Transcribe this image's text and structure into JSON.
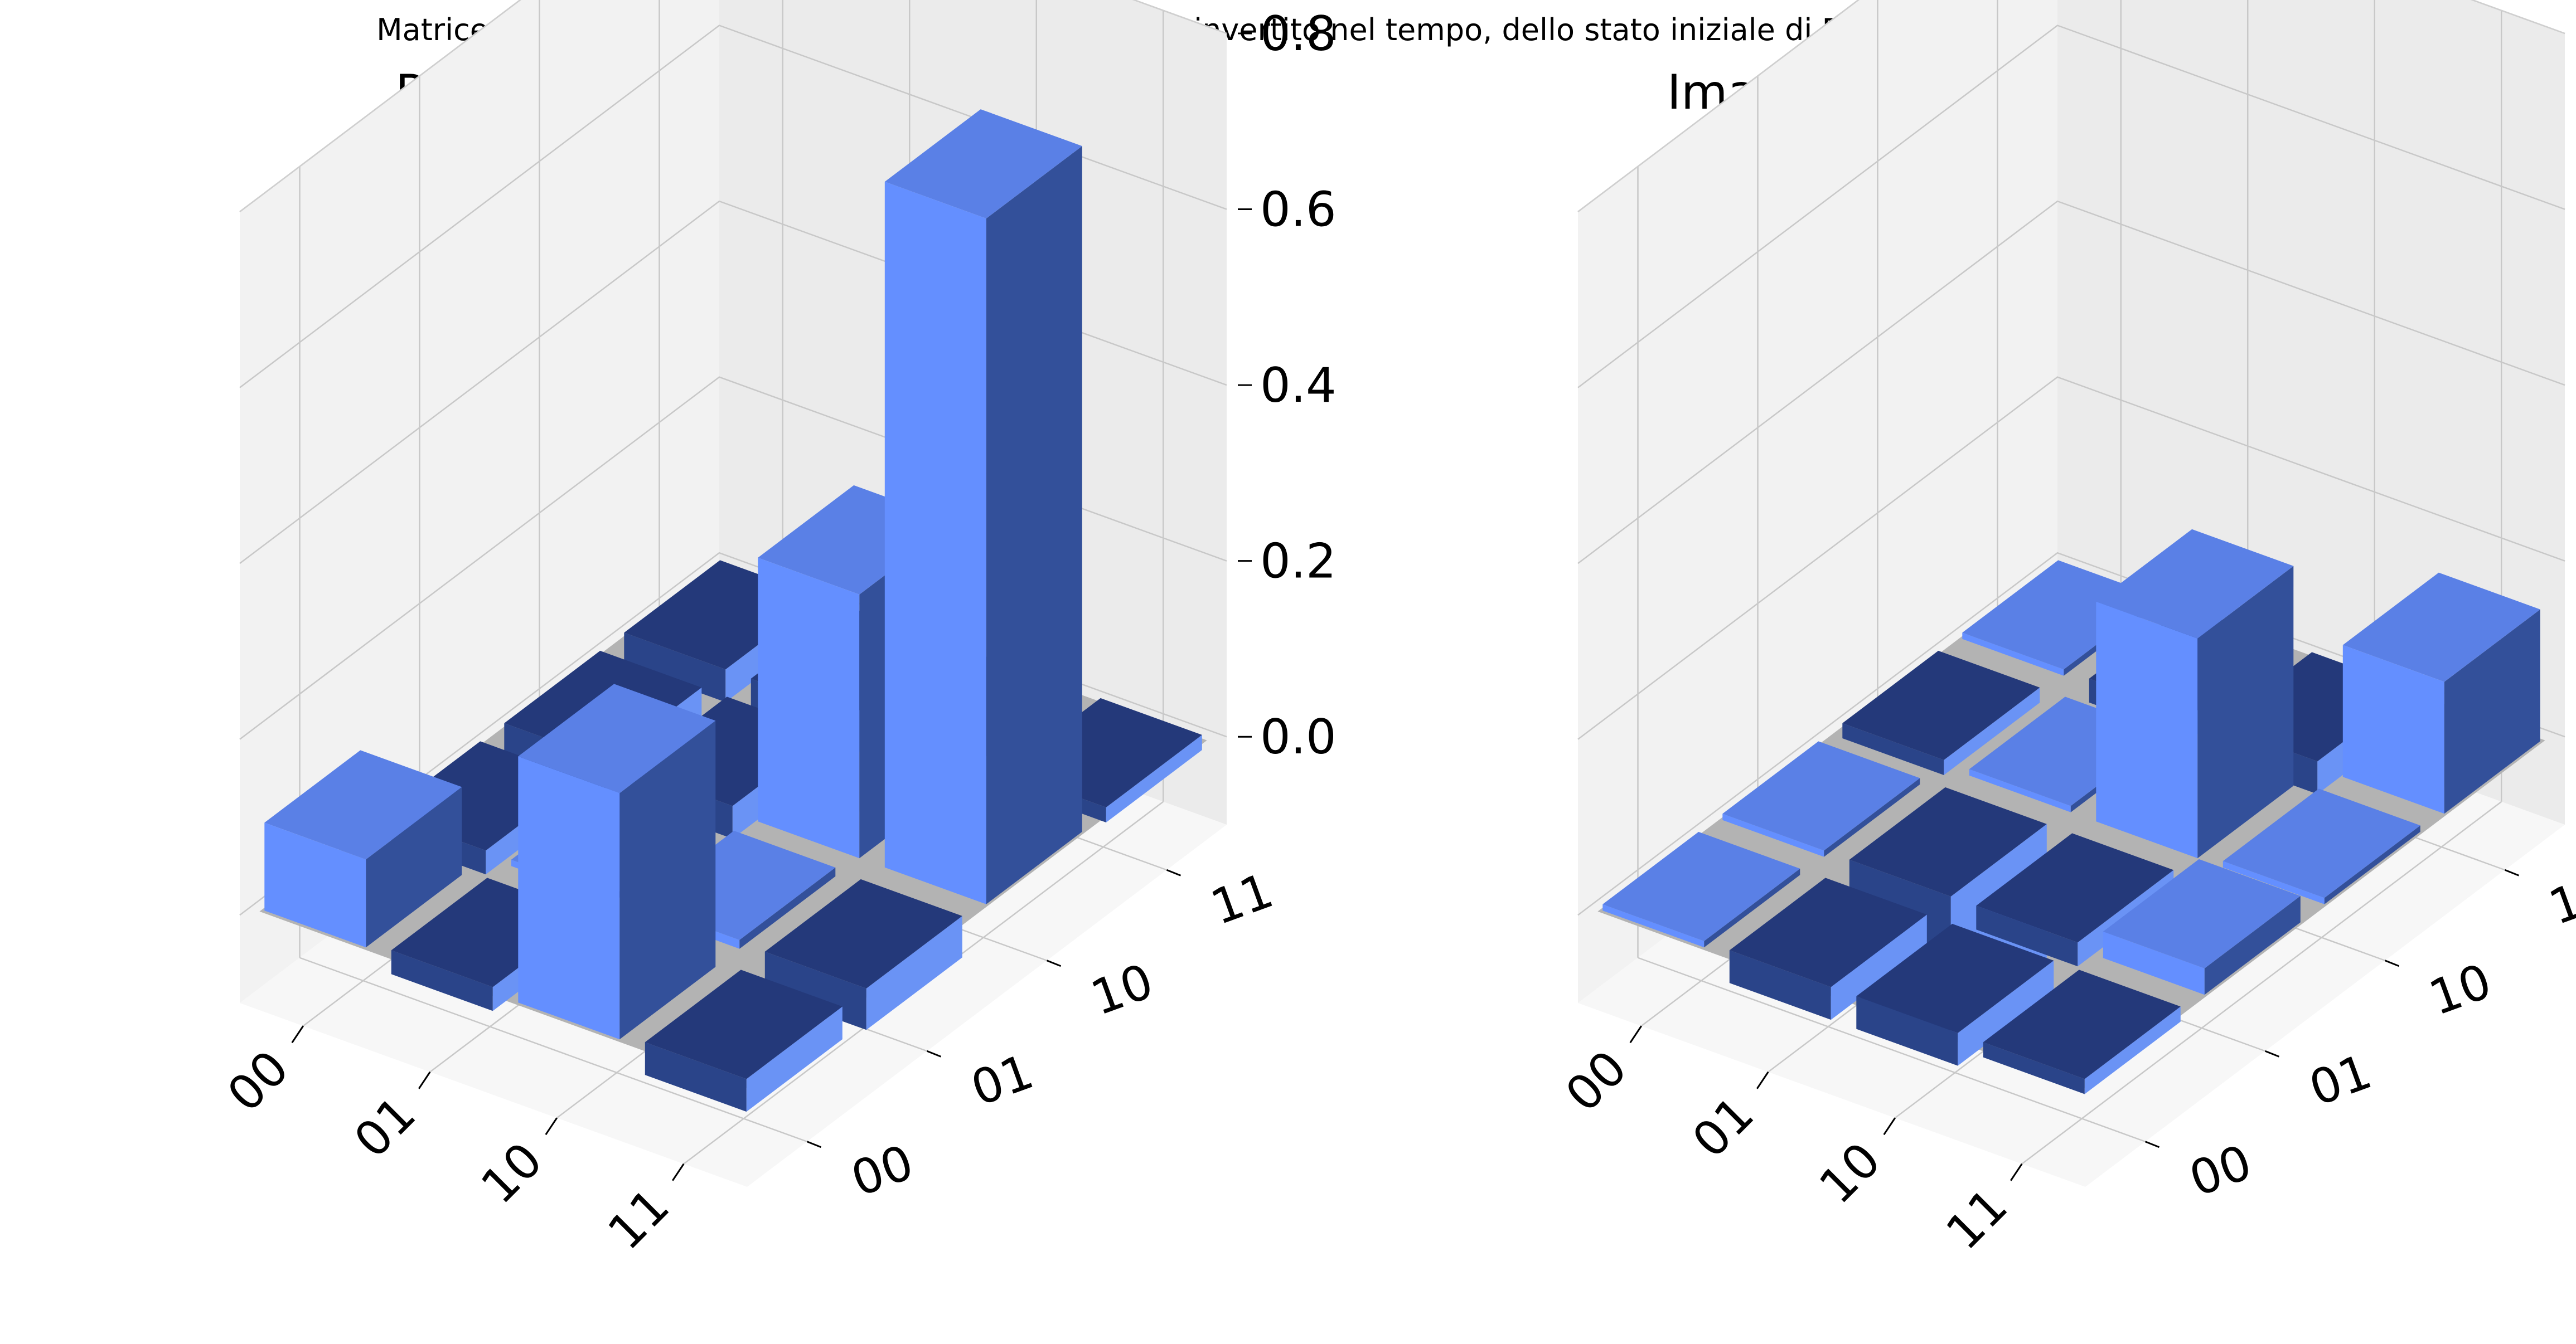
{
  "suptitle": "Matrice densità dopo l'evoluzione del secondo Ansatz invertito nel tempo, dello stato iniziale di D, il cui stato iniziale '00'",
  "colors": {
    "positive_face": "#648fff",
    "negative_face": "#2a4489",
    "side": "#33509a",
    "floor": "#b3b3b3",
    "pane": "#f2f2f2",
    "grid": "#c8c8c8"
  },
  "chart_data": [
    {
      "type": "bar3d",
      "title": "Real Amplitude (ρ)",
      "row_labels": [
        "00",
        "01",
        "10",
        "11"
      ],
      "col_labels": [
        "00",
        "01",
        "10",
        "11"
      ],
      "zlim": [
        -0.1,
        0.8
      ],
      "z_ticks": [
        "0.0",
        "0.2",
        "0.4",
        "0.6",
        "0.8"
      ],
      "z_tick_values": [
        0.0,
        0.2,
        0.4,
        0.6,
        0.8
      ],
      "grid": true,
      "values": [
        [
          0.1,
          -0.02,
          -0.03,
          -0.03
        ],
        [
          -0.02,
          0.0,
          -0.03,
          -0.04
        ],
        [
          0.28,
          0.01,
          0.3,
          -0.1
        ],
        [
          -0.03,
          -0.04,
          0.78,
          -0.01
        ]
      ]
    },
    {
      "type": "bar3d",
      "title": "Imaginary Amplitude (ρ)",
      "row_labels": [
        "00",
        "01",
        "10",
        "11"
      ],
      "col_labels": [
        "00",
        "01",
        "10",
        "11"
      ],
      "zlim": [
        -0.1,
        0.8
      ],
      "z_ticks": [
        "0.0",
        "0.2",
        "0.4",
        "0.6",
        "0.8"
      ],
      "z_tick_values": [
        0.0,
        0.2,
        0.4,
        0.6,
        0.8
      ],
      "grid": true,
      "values": [
        [
          0.0,
          0.0,
          -0.01,
          0.0
        ],
        [
          -0.03,
          -0.15,
          0.0,
          -0.02
        ],
        [
          -0.03,
          -0.02,
          0.25,
          -0.03
        ],
        [
          -0.01,
          0.03,
          0.0,
          0.15
        ]
      ]
    }
  ]
}
